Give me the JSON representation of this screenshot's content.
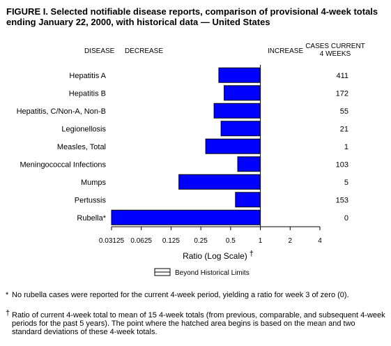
{
  "title": "FIGURE I. Selected notifiable disease reports, comparison of provisional 4-week totals ending January 22, 2000, with historical data — United States",
  "footnotes": [
    {
      "mark": "*",
      "text": "No rubella cases were reported for the current 4-week period, yielding a ratio for week 3 of zero (0)."
    },
    {
      "mark": "†",
      "text": "Ratio of current 4-week total to mean of 15 4-week totals (from previous, comparable, and subsequent 4-week periods for the past 5 years). The point where the hatched area begins is based on the mean and two standard deviations of these 4-week totals."
    }
  ],
  "chart_data": {
    "type": "bar",
    "orientation": "horizontal",
    "headers": {
      "disease": "DISEASE",
      "decrease": "DECREASE",
      "increase": "INCREASE",
      "cases": [
        "CASES CURRENT",
        "4 WEEKS"
      ]
    },
    "categories": [
      "Hepatitis A",
      "Hepatitis B",
      "Hepatitis, C/Non-A, Non-B",
      "Legionellosis",
      "Measles, Total",
      "Meningococcal Infections",
      "Mumps",
      "Pertussis",
      "Rubella*"
    ],
    "values": [
      0.38,
      0.43,
      0.34,
      0.4,
      0.28,
      0.59,
      0.15,
      0.56,
      0.03125
    ],
    "cases_current_4_weeks": [
      "411",
      "172",
      "55",
      "21",
      "1",
      "103",
      "5",
      "153",
      "0"
    ],
    "xscale": "log2",
    "xlim": [
      0.03125,
      4
    ],
    "baseline": 1,
    "xticks": [
      0.03125,
      0.0625,
      0.125,
      0.25,
      0.5,
      1,
      2,
      4
    ],
    "xtick_labels": [
      "0.03125",
      "0.0625",
      "0.125",
      "0.25",
      "0.5",
      "1",
      "2",
      "4"
    ],
    "xlabel": "Ratio (Log Scale)",
    "xlabel_mark": "†",
    "legend": {
      "label": "Beyond Historical Limits",
      "placement": "bottom-center"
    },
    "colors": {
      "bar": "#0000ff",
      "outline": "#000000"
    }
  }
}
